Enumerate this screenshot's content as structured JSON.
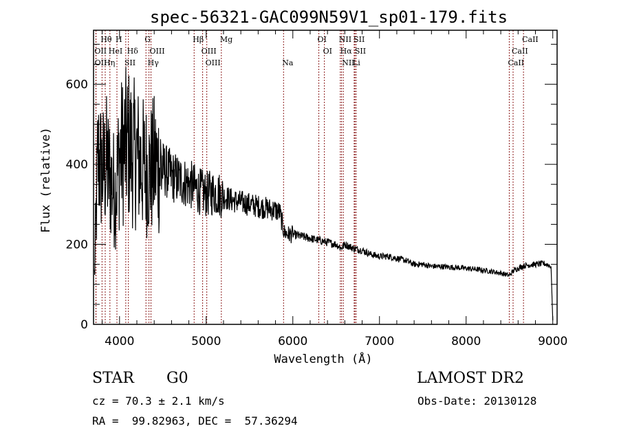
{
  "chart_data": {
    "type": "line",
    "title": "spec-56321-GAC099N59V1_sp01-179.fits",
    "xlabel": "Wavelength (Å)",
    "ylabel": "Flux (relative)",
    "xlim": [
      3700,
      9050
    ],
    "ylim": [
      0,
      735
    ],
    "x_ticks": [
      4000,
      5000,
      6000,
      7000,
      8000,
      9000
    ],
    "y_ticks": [
      0,
      200,
      400,
      600
    ],
    "grid": false,
    "series": [
      {
        "name": "spectrum",
        "color": "#000000",
        "x": [
          3710,
          3750,
          3800,
          3850,
          3900,
          3950,
          4000,
          4050,
          4100,
          4150,
          4200,
          4250,
          4300,
          4350,
          4400,
          4450,
          4500,
          4550,
          4600,
          4650,
          4700,
          4750,
          4800,
          4850,
          4900,
          4950,
          5000,
          5100,
          5200,
          5300,
          5400,
          5500,
          5600,
          5700,
          5800,
          5850,
          5900,
          5950,
          6000,
          6100,
          6200,
          6300,
          6400,
          6500,
          6560,
          6600,
          6700,
          6800,
          6900,
          7000,
          7100,
          7200,
          7300,
          7400,
          7500,
          7600,
          7700,
          7800,
          7900,
          8000,
          8100,
          8200,
          8300,
          8400,
          8450,
          8500,
          8550,
          8600,
          8650,
          8700,
          8800,
          8900,
          8950,
          8980,
          9000
        ],
        "values": [
          120,
          420,
          380,
          400,
          360,
          330,
          420,
          440,
          450,
          430,
          420,
          400,
          390,
          380,
          400,
          395,
          390,
          380,
          370,
          365,
          360,
          355,
          350,
          345,
          335,
          330,
          325,
          330,
          320,
          310,
          305,
          300,
          295,
          290,
          285,
          280,
          230,
          225,
          225,
          220,
          215,
          210,
          205,
          200,
          190,
          200,
          190,
          185,
          175,
          170,
          170,
          165,
          160,
          150,
          150,
          145,
          145,
          143,
          142,
          140,
          138,
          135,
          132,
          128,
          125,
          122,
          135,
          140,
          145,
          148,
          150,
          152,
          148,
          145,
          10
        ]
      }
    ],
    "spectral_lines": [
      {
        "label": "Hθ",
        "wavelength": 3798,
        "row": 1
      },
      {
        "label": "H",
        "wavelength": 3970,
        "row": 1
      },
      {
        "label": "G",
        "wavelength": 4305,
        "row": 1
      },
      {
        "label": "Hβ",
        "wavelength": 4861,
        "row": 1
      },
      {
        "label": "Mg",
        "wavelength": 5175,
        "row": 1
      },
      {
        "label": "OI",
        "wavelength": 6300,
        "row": 1
      },
      {
        "label": "NII",
        "wavelength": 6548,
        "row": 1
      },
      {
        "label": "SII",
        "wavelength": 6717,
        "row": 1
      },
      {
        "label": "CaII",
        "wavelength": 8662,
        "row": 1
      },
      {
        "label": "OII",
        "wavelength": 3727,
        "row": 2
      },
      {
        "label": "HeI",
        "wavelength": 3889,
        "row": 2
      },
      {
        "label": "Hδ",
        "wavelength": 4102,
        "row": 2
      },
      {
        "label": "OIII",
        "wavelength": 4363,
        "row": 2
      },
      {
        "label": "OIII",
        "wavelength": 4959,
        "row": 2
      },
      {
        "label": "OI",
        "wavelength": 6364,
        "row": 2
      },
      {
        "label": "Hα",
        "wavelength": 6563,
        "row": 2
      },
      {
        "label": "SII",
        "wavelength": 6731,
        "row": 2
      },
      {
        "label": "CaII",
        "wavelength": 8542,
        "row": 2
      },
      {
        "label": "OII",
        "wavelength": 3729,
        "row": 3
      },
      {
        "label": "Hη",
        "wavelength": 3835,
        "row": 3
      },
      {
        "label": "SII",
        "wavelength": 4072,
        "row": 3
      },
      {
        "label": "Hγ",
        "wavelength": 4340,
        "row": 3
      },
      {
        "label": "OIII",
        "wavelength": 5007,
        "row": 3
      },
      {
        "label": "Na",
        "wavelength": 5893,
        "row": 3
      },
      {
        "label": "NII",
        "wavelength": 6583,
        "row": 3
      },
      {
        "label": "Li",
        "wavelength": 6708,
        "row": 3
      },
      {
        "label": "CaII",
        "wavelength": 8498,
        "row": 3
      }
    ],
    "line_color": "#8b1a1a"
  },
  "info": {
    "class": "STAR",
    "subclass": "G0",
    "cz": "cz = 70.3 ± 2.1 km/s",
    "coords": "RA =  99.82963, DEC =  57.36294",
    "survey": "LAMOST DR2",
    "obs_date": "Obs-Date: 20130128"
  }
}
